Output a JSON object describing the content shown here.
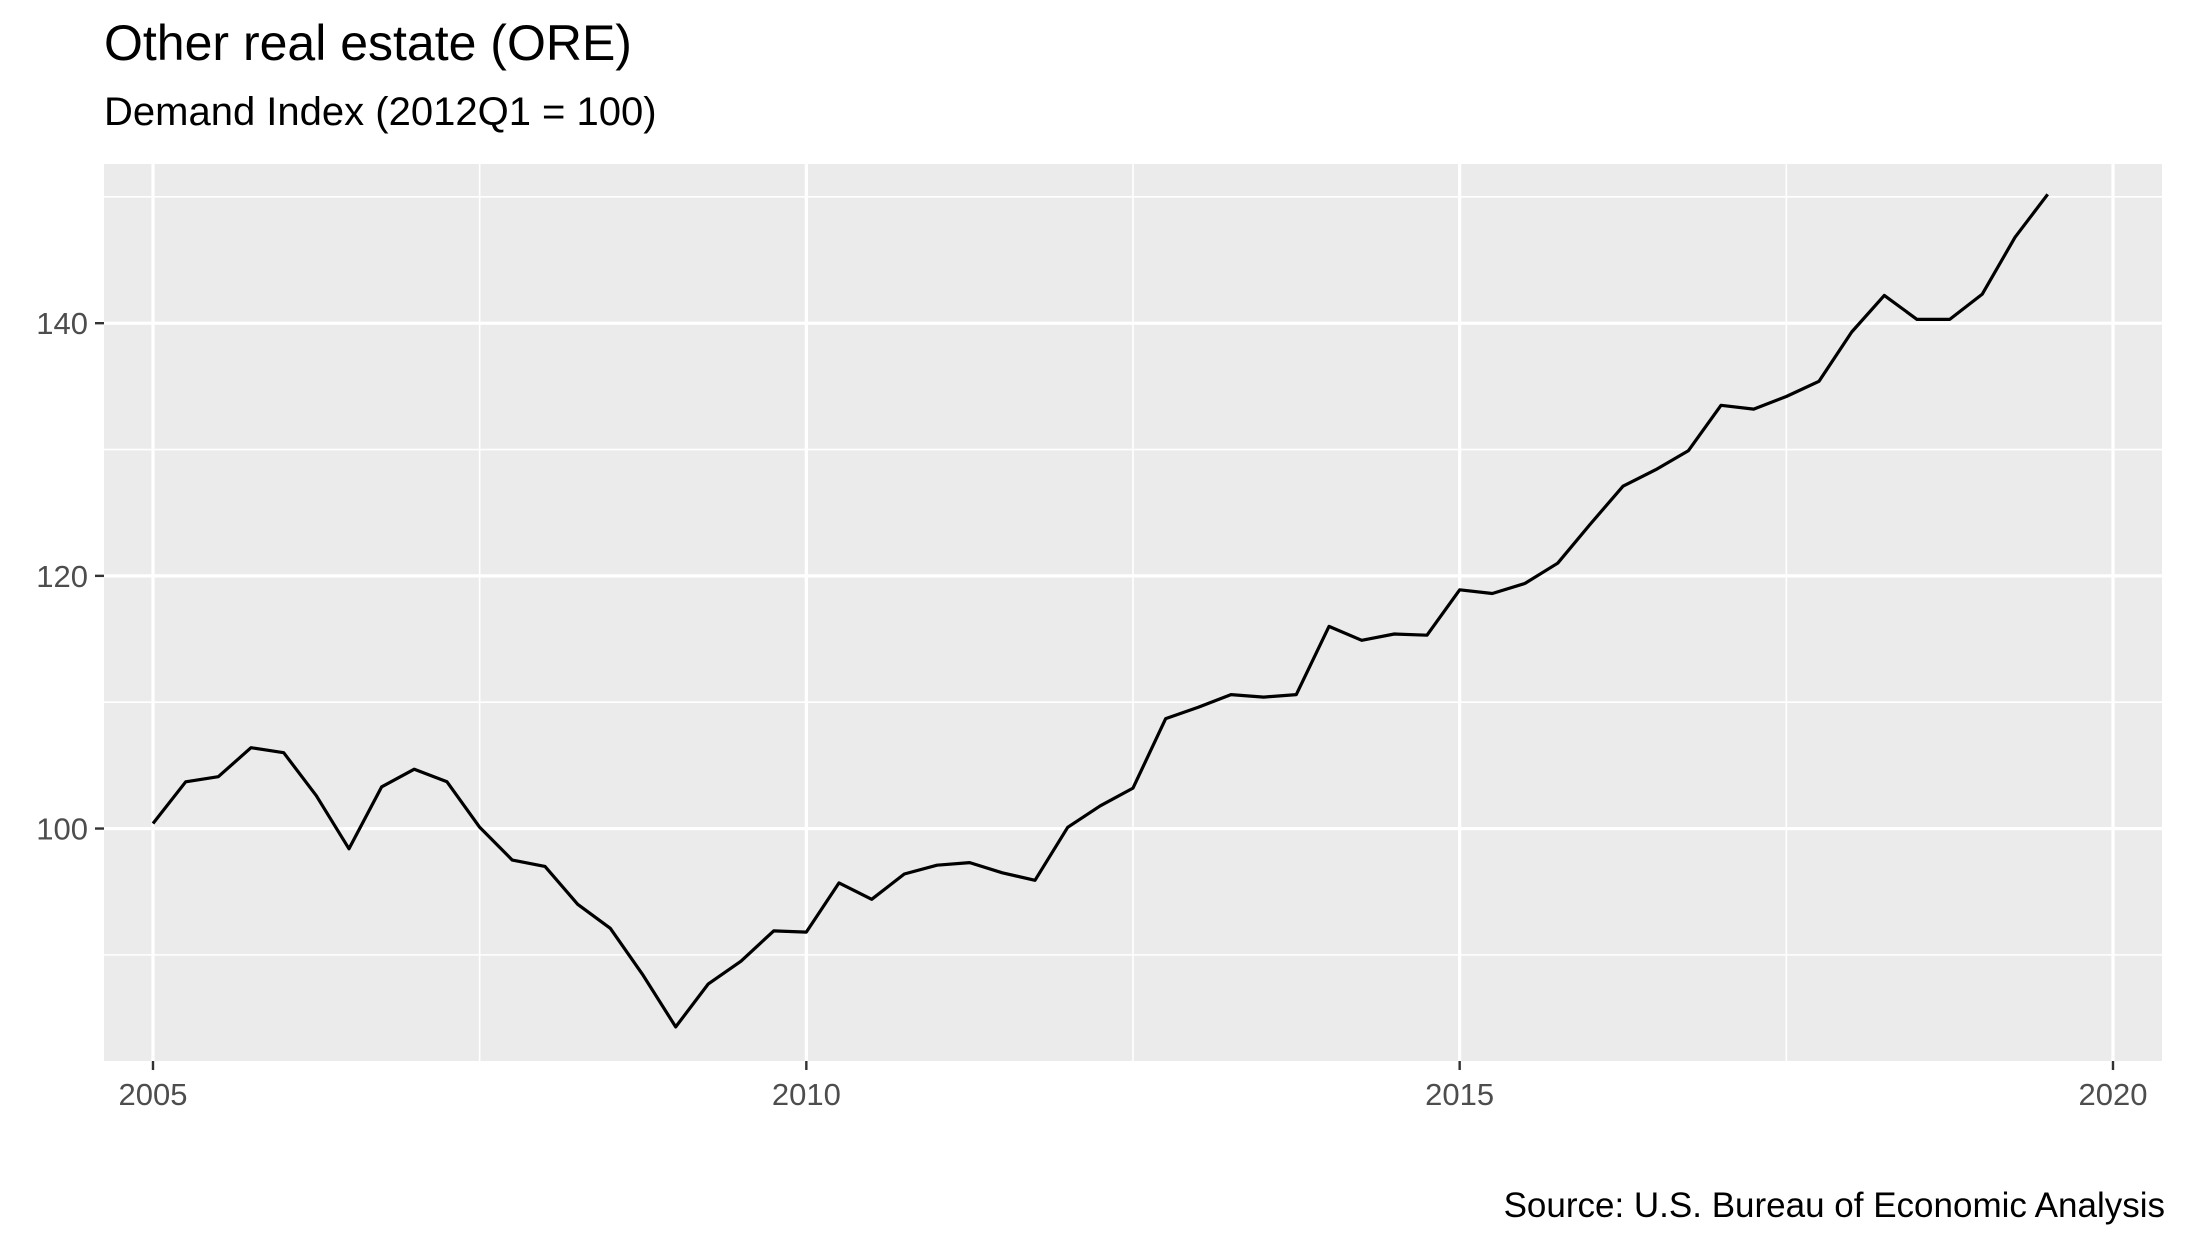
{
  "chart_data": {
    "type": "line",
    "title": "Other real estate (ORE)",
    "subtitle": "Demand Index (2012Q1 = 100)",
    "caption": "Source: U.S. Bureau of Economic Analysis",
    "xlabel": "",
    "ylabel": "",
    "xlim": [
      2004.625,
      2020.375
    ],
    "ylim": [
      81.6,
      152.6
    ],
    "x_ticks": [
      2005,
      2010,
      2015,
      2020
    ],
    "y_ticks": [
      100,
      120,
      140
    ],
    "grid": true,
    "panel_background": "#ebebeb",
    "grid_color": "#ffffff",
    "line_color": "#000000",
    "x": [
      2005.0,
      2005.25,
      2005.5,
      2005.75,
      2006.0,
      2006.25,
      2006.5,
      2006.75,
      2007.0,
      2007.25,
      2007.5,
      2007.75,
      2008.0,
      2008.25,
      2008.5,
      2008.75,
      2009.0,
      2009.25,
      2009.5,
      2009.75,
      2010.0,
      2010.25,
      2010.5,
      2010.75,
      2011.0,
      2011.25,
      2011.5,
      2011.75,
      2012.0,
      2012.25,
      2012.5,
      2012.75,
      2013.0,
      2013.25,
      2013.5,
      2013.75,
      2014.0,
      2014.25,
      2014.5,
      2014.75,
      2015.0,
      2015.25,
      2015.5,
      2015.75,
      2016.0,
      2016.25,
      2016.5,
      2016.75,
      2017.0,
      2017.25,
      2017.5,
      2017.75,
      2018.0,
      2018.25,
      2018.5,
      2018.75,
      2019.0,
      2019.25,
      2019.5
    ],
    "values": [
      100.4,
      103.7,
      104.1,
      106.4,
      106.0,
      102.6,
      98.4,
      103.3,
      104.7,
      103.7,
      100.1,
      97.5,
      97.0,
      94.0,
      92.1,
      88.4,
      84.3,
      87.7,
      89.5,
      91.9,
      91.8,
      95.7,
      94.4,
      96.4,
      97.1,
      97.3,
      96.5,
      95.9,
      100.1,
      101.8,
      103.2,
      108.7,
      109.6,
      110.6,
      110.4,
      110.6,
      116.0,
      114.9,
      115.4,
      115.3,
      118.9,
      118.6,
      119.4,
      121.0,
      124.1,
      127.1,
      128.4,
      129.9,
      133.5,
      133.2,
      134.2,
      135.4,
      139.3,
      142.2,
      140.3,
      140.3,
      142.3,
      146.8,
      150.2
    ]
  }
}
